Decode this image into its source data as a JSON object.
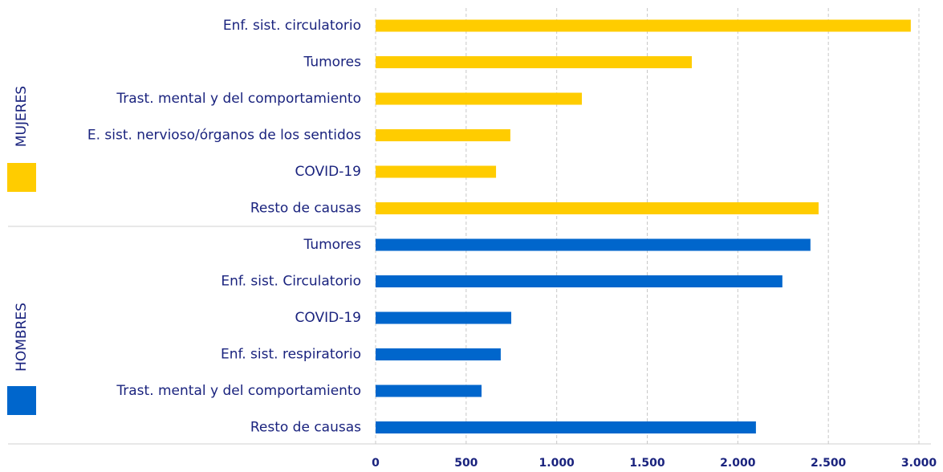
{
  "chart_data": {
    "type": "bar",
    "orientation": "horizontal",
    "groups": [
      {
        "name": "MUJERES",
        "color": "#ffcc00",
        "categories": [
          "Enf. sist. circulatorio",
          "Tumores",
          "Trast. mental y del comportamiento",
          "E. sist. nervioso/órganos de los sentidos",
          "COVID-19",
          "Resto de causas"
        ],
        "values": [
          2955,
          1746,
          1139,
          744,
          665,
          2446
        ]
      },
      {
        "name": "HOMBRES",
        "color": "#0066cc",
        "categories": [
          "Tumores",
          "Enf. sist. Circulatorio",
          "COVID-19",
          "Enf. sist. respiratorio",
          "Trast. mental y del comportamiento",
          "Resto de causas"
        ],
        "values": [
          2401,
          2246,
          749,
          691,
          585,
          2100
        ]
      }
    ],
    "xlim": [
      0,
      3000
    ],
    "xticks": [
      0,
      500,
      {
        "value": 1000,
        "label": "1.000"
      },
      {
        "value": 1500,
        "label": "1.500"
      },
      {
        "value": 2000,
        "label": "2.000"
      },
      {
        "value": 2500,
        "label": "2.500"
      },
      {
        "value": 3000,
        "label": "3.000"
      }
    ],
    "grid": true
  }
}
